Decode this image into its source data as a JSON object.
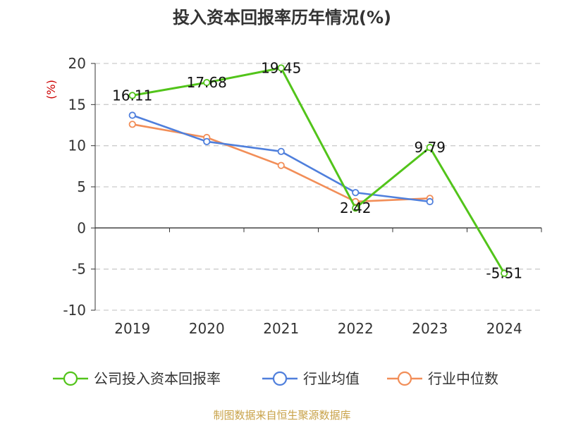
{
  "chart_data": {
    "type": "line",
    "title": "投入资本回报率历年情况(%)",
    "ylabel": "(%)",
    "categories": [
      "2019",
      "2020",
      "2021",
      "2022",
      "2023",
      "2024"
    ],
    "ylim": [
      -10,
      20
    ],
    "yticks": [
      20,
      15,
      10,
      5,
      0,
      -5,
      -10
    ],
    "grid": true,
    "legend_position": "bottom",
    "series": [
      {
        "name": "公司投入资本回报率",
        "color": "#52c41a",
        "values": [
          16.11,
          17.68,
          19.45,
          2.42,
          9.79,
          -5.51
        ],
        "labels": [
          "16.11",
          "17.68",
          "19.45",
          "2.42",
          "9.79",
          "-5.51"
        ]
      },
      {
        "name": "行业均值",
        "color": "#4f7fdc",
        "values": [
          13.7,
          10.5,
          9.3,
          4.3,
          3.2,
          null
        ]
      },
      {
        "name": "行业中位数",
        "color": "#f28e58",
        "values": [
          12.6,
          11.0,
          7.6,
          3.2,
          3.6,
          null
        ]
      }
    ]
  },
  "source": "制图数据来自恒生聚源数据库"
}
